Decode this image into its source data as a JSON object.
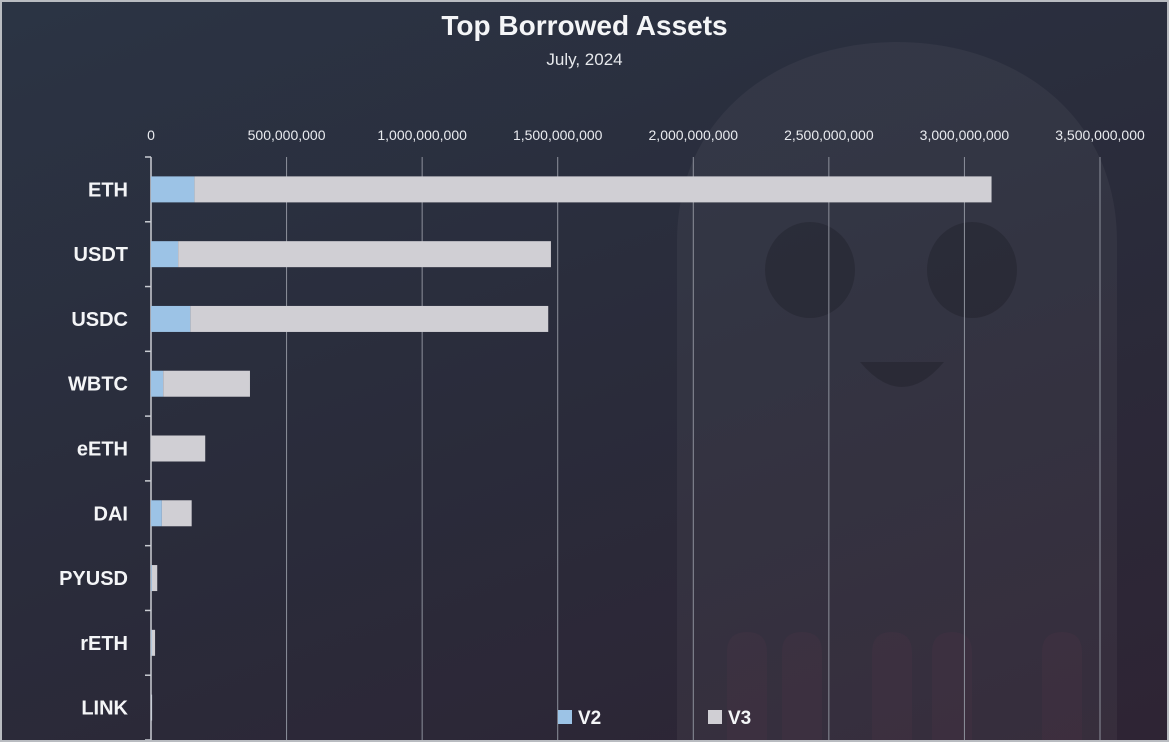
{
  "chart_data": {
    "type": "bar",
    "orientation": "horizontal",
    "stacked": true,
    "title": "Top Borrowed Assets",
    "subtitle": "July, 2024",
    "categories": [
      "ETH",
      "USDT",
      "USDC",
      "WBTC",
      "eETH",
      "DAI",
      "PYUSD",
      "rETH",
      "LINK"
    ],
    "series": [
      {
        "name": "V2",
        "color": "#9cc3e6",
        "values": [
          160000000,
          100000000,
          145000000,
          45000000,
          0,
          40000000,
          3000000,
          2000000,
          1000000
        ]
      },
      {
        "name": "V3",
        "color": "#d0cfd4",
        "values": [
          2940000000,
          1375000000,
          1320000000,
          320000000,
          200000000,
          110000000,
          20000000,
          13000000,
          3000000
        ]
      }
    ],
    "xlim": [
      0,
      3500000000
    ],
    "x_ticks": [
      0,
      500000000,
      1000000000,
      1500000000,
      2000000000,
      2500000000,
      3000000000,
      3500000000
    ],
    "x_tick_labels": [
      "0",
      "500,000,000",
      "1,000,000,000",
      "1,500,000,000",
      "2,000,000,000",
      "2,500,000,000",
      "3,000,000,000",
      "3,500,000,000"
    ],
    "xlabel": "",
    "ylabel": "",
    "grid": "vertical",
    "axis_position": "top",
    "legend_position": "bottom"
  }
}
